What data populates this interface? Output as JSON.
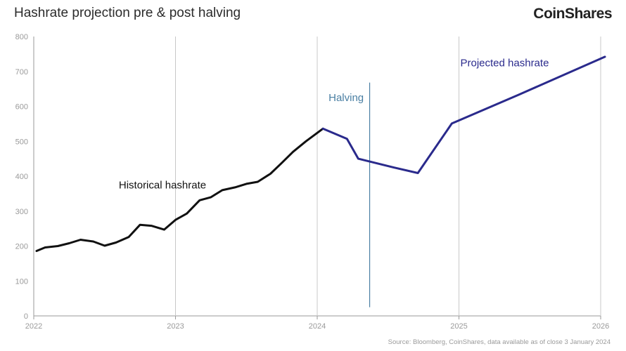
{
  "header": {
    "title": "Hashrate projection pre & post halving",
    "logo": "CoinShares"
  },
  "footer": {
    "source": "Source: Bloomberg, CoinShares, data available as of close 3 January 2024"
  },
  "chart_data": {
    "type": "line",
    "ylim": [
      0,
      800
    ],
    "xlim": [
      2022,
      2026
    ],
    "y_ticks": [
      "0",
      "100",
      "200",
      "300",
      "400",
      "500",
      "600",
      "700",
      "800"
    ],
    "x_ticks": [
      "2022",
      "2023",
      "2024",
      "2025",
      "2026"
    ],
    "grid": "vertical lines at year ticks",
    "series": [
      {
        "name": "Historical hashrate",
        "color": "#111111",
        "x": [
          2022.02,
          2022.08,
          2022.17,
          2022.25,
          2022.33,
          2022.42,
          2022.5,
          2022.58,
          2022.67,
          2022.75,
          2022.83,
          2022.92,
          2023.0,
          2023.08,
          2023.17,
          2023.25,
          2023.33,
          2023.42,
          2023.5,
          2023.58,
          2023.67,
          2023.75,
          2023.83,
          2023.92,
          2024.04
        ],
        "y": [
          186,
          196,
          200,
          208,
          218,
          213,
          201,
          210,
          226,
          261,
          258,
          247,
          275,
          293,
          331,
          340,
          360,
          368,
          378,
          384,
          407,
          438,
          470,
          500,
          536
        ]
      },
      {
        "name": "Projected hashrate",
        "color": "#2a2a8c",
        "x": [
          2024.04,
          2024.21,
          2024.29,
          2024.54,
          2024.71,
          2024.95,
          2025.42,
          2026.03
        ],
        "y": [
          536,
          507,
          450,
          425,
          409,
          551,
          633,
          742
        ]
      }
    ],
    "annotations": [
      {
        "text": "Historical hashrate",
        "x": 2022.6,
        "y": 365,
        "color": "#111111"
      },
      {
        "text": "Halving",
        "x": 2024.08,
        "y": 615,
        "color": "#4a7fa3"
      },
      {
        "text": "Projected hashrate",
        "x": 2025.01,
        "y": 715,
        "color": "#2a2a8c"
      }
    ],
    "halving_line": {
      "x": 2024.37,
      "y_from": 25,
      "y_to": 668,
      "color": "#4a7fa3"
    }
  }
}
